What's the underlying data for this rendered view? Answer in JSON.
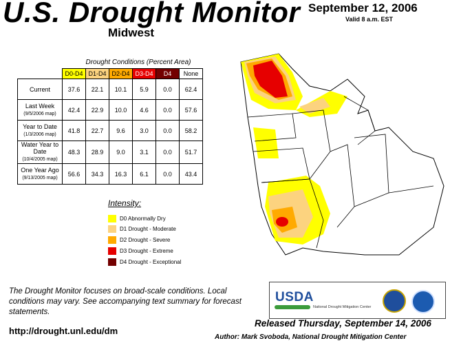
{
  "header": {
    "title": "U.S. Drought Monitor",
    "region": "Midwest",
    "date": "September 12, 2006",
    "valid": "Valid 8 a.m. EST"
  },
  "table": {
    "caption": "Drought Conditions (Percent Area)",
    "columns": [
      "D0-D4",
      "D1-D4",
      "D2-D4",
      "D3-D4",
      "D4",
      "None"
    ],
    "rows": [
      {
        "label": "Current",
        "sub": "",
        "values": [
          "37.6",
          "22.1",
          "10.1",
          "5.9",
          "0.0",
          "62.4"
        ]
      },
      {
        "label": "Last Week",
        "sub": "(9/5/2006 map)",
        "values": [
          "42.4",
          "22.9",
          "10.0",
          "4.6",
          "0.0",
          "57.6"
        ]
      },
      {
        "label": "Year to Date",
        "sub": "(1/3/2006 map)",
        "values": [
          "41.8",
          "22.7",
          "9.6",
          "3.0",
          "0.0",
          "58.2"
        ]
      },
      {
        "label": "Water Year to Date",
        "sub": "(10/4/2005 map)",
        "values": [
          "48.3",
          "28.9",
          "9.0",
          "3.1",
          "0.0",
          "51.7"
        ]
      },
      {
        "label": "One Year Ago",
        "sub": "(9/13/2005 map)",
        "values": [
          "56.6",
          "34.3",
          "16.3",
          "6.1",
          "0.0",
          "43.4"
        ]
      }
    ]
  },
  "legend": {
    "title": "Intensity:",
    "items": [
      {
        "label": "D0 Abnormally Dry",
        "color": "#ffff00"
      },
      {
        "label": "D1 Drought - Moderate",
        "color": "#fcd37f"
      },
      {
        "label": "D2 Drought - Severe",
        "color": "#ffaa00"
      },
      {
        "label": "D3 Drought - Extreme",
        "color": "#e60000"
      },
      {
        "label": "D4 Drought - Exceptional",
        "color": "#730000"
      }
    ]
  },
  "footer": {
    "note": "The Drought Monitor focuses on broad-scale conditions. Local conditions may vary. See accompanying text summary for forecast statements.",
    "url": "http://drought.unl.edu/dm",
    "released": "Released Thursday, September 14, 2006",
    "author": "Author: Mark Svoboda, National Drought Mitigation Center"
  },
  "logos": {
    "usda": "USDA",
    "ndmc": "National Drought Mitigation Center"
  },
  "colors": {
    "d0": "#ffff00",
    "d1": "#fcd37f",
    "d2": "#ffaa00",
    "d3": "#e60000",
    "d4": "#730000",
    "map_outline": "#000000"
  }
}
